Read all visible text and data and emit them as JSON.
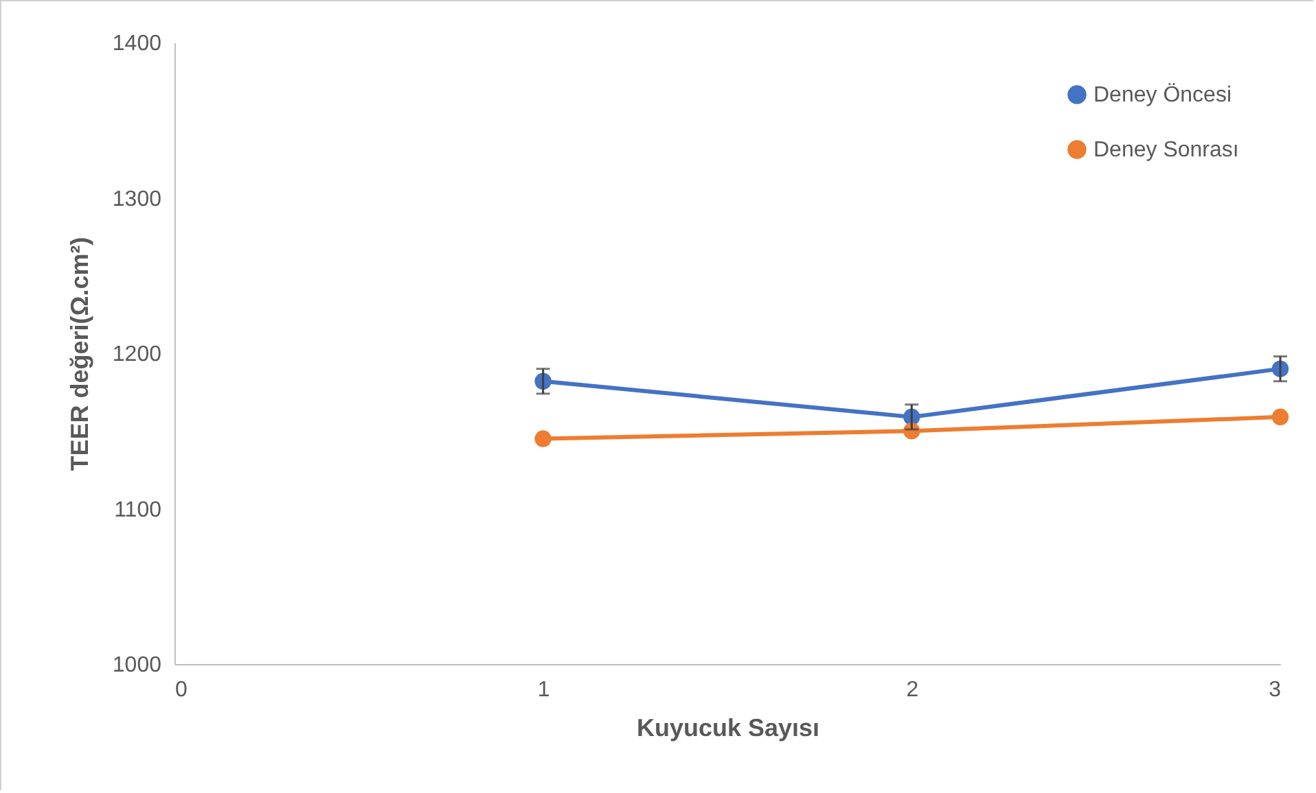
{
  "chart_data": {
    "type": "line",
    "xlabel": "Kuyucuk Sayısı",
    "ylabel": "TEER değeri(Ω.cm²)",
    "x": [
      1,
      2,
      3
    ],
    "xlim": [
      0,
      3
    ],
    "xticks": [
      0,
      1,
      2,
      3
    ],
    "ylim": [
      1000,
      1400
    ],
    "yticks": [
      1000,
      1100,
      1200,
      1300,
      1400
    ],
    "grid": false,
    "legend": "top right",
    "marker": "circle",
    "line_style": "solid",
    "series": [
      {
        "name": "Deney Öncesi",
        "color": "#4472c4",
        "values": [
          1182,
          1159,
          1190
        ],
        "errors": [
          8,
          8,
          8
        ]
      },
      {
        "name": "Deney Sonrası",
        "color": "#ed7d31",
        "values": [
          1145,
          1150,
          1159
        ]
      }
    ]
  }
}
